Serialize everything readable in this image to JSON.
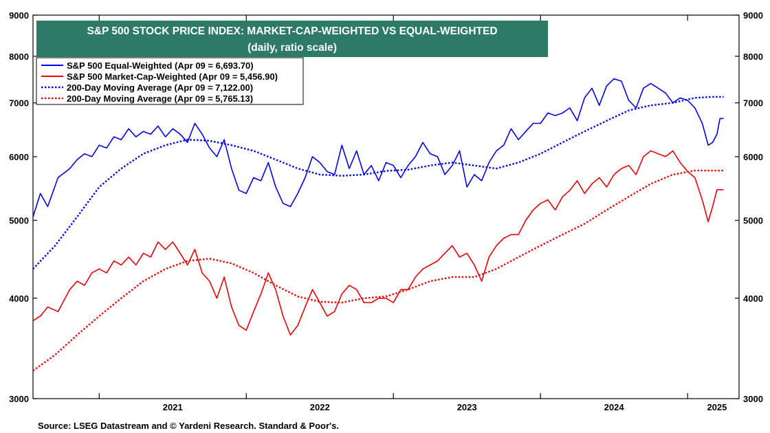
{
  "chart_data": {
    "type": "line",
    "title": "S&P 500 STOCK PRICE INDEX: MARKET-CAP-WEIGHTED VS EQUAL-WEIGHTED",
    "subtitle": "(daily, ratio scale)",
    "source": "Source: LSEG Datastream and © Yardeni Research. Standard & Poor's.",
    "y_scale": "log",
    "ylim": [
      3000,
      9000
    ],
    "yticks": [
      3000,
      4000,
      5000,
      6000,
      7000,
      8000,
      9000
    ],
    "xlim": [
      2020.55,
      2025.35
    ],
    "xticks": [
      2021.5,
      2022.5,
      2023.5,
      2024.5,
      2025.2
    ],
    "xtick_labels": [
      "2021",
      "2022",
      "2023",
      "2024",
      "2025"
    ],
    "year_boundaries": [
      2021,
      2022,
      2023,
      2024,
      2025
    ],
    "grid": false,
    "legend_position": "top-left",
    "colors": {
      "equal": "#0000ee",
      "cap": "#ee0000",
      "title_bg": "#2e7a68"
    },
    "series": [
      {
        "name": "S&P 500 Equal-Weighted (Apr 09 = 6,693.70)",
        "style": "solid",
        "color": "#0000ee",
        "x": [
          2020.55,
          2020.6,
          2020.65,
          2020.72,
          2020.8,
          2020.85,
          2020.9,
          2020.95,
          2021.0,
          2021.05,
          2021.1,
          2021.15,
          2021.2,
          2021.25,
          2021.3,
          2021.35,
          2021.4,
          2021.45,
          2021.5,
          2021.55,
          2021.6,
          2021.65,
          2021.7,
          2021.75,
          2021.8,
          2021.85,
          2021.9,
          2021.95,
          2022.0,
          2022.05,
          2022.1,
          2022.15,
          2022.2,
          2022.25,
          2022.3,
          2022.35,
          2022.4,
          2022.45,
          2022.5,
          2022.55,
          2022.6,
          2022.65,
          2022.7,
          2022.75,
          2022.8,
          2022.85,
          2022.9,
          2022.95,
          2023.0,
          2023.05,
          2023.1,
          2023.15,
          2023.2,
          2023.25,
          2023.3,
          2023.35,
          2023.4,
          2023.45,
          2023.5,
          2023.55,
          2023.6,
          2023.65,
          2023.7,
          2023.75,
          2023.8,
          2023.85,
          2023.9,
          2023.95,
          2024.0,
          2024.05,
          2024.1,
          2024.15,
          2024.2,
          2024.25,
          2024.3,
          2024.35,
          2024.4,
          2024.45,
          2024.5,
          2024.55,
          2024.6,
          2024.65,
          2024.7,
          2024.75,
          2024.8,
          2024.85,
          2024.9,
          2024.95,
          2025.0,
          2025.05,
          2025.1,
          2025.14,
          2025.17,
          2025.2,
          2025.22,
          2025.235,
          2025.245
        ],
        "values": [
          5050,
          5400,
          5200,
          5650,
          5800,
          5950,
          6050,
          6000,
          6200,
          6150,
          6350,
          6300,
          6500,
          6350,
          6450,
          6400,
          6550,
          6350,
          6500,
          6400,
          6250,
          6600,
          6400,
          6150,
          6000,
          6300,
          5800,
          5450,
          5400,
          5650,
          5600,
          5900,
          5500,
          5250,
          5200,
          5400,
          5650,
          6000,
          5900,
          5750,
          5700,
          6200,
          5800,
          6100,
          5700,
          5850,
          5600,
          5900,
          5850,
          5650,
          5850,
          6000,
          6250,
          6050,
          6000,
          5700,
          5850,
          6100,
          5500,
          5700,
          5600,
          5900,
          6100,
          6200,
          6500,
          6300,
          6450,
          6600,
          6600,
          6800,
          6750,
          6800,
          6900,
          6650,
          7100,
          7300,
          6950,
          7350,
          7500,
          7450,
          7050,
          6900,
          7300,
          7400,
          7300,
          7200,
          7000,
          7100,
          7050,
          6900,
          6600,
          6200,
          6250,
          6400,
          6693.7,
          6693.7,
          6693.7
        ]
      },
      {
        "name": "S&P 500 Market-Cap-Weighted (Apr 09 = 5,456.90)",
        "style": "solid",
        "color": "#ee0000",
        "x": [
          2020.55,
          2020.6,
          2020.65,
          2020.72,
          2020.8,
          2020.85,
          2020.9,
          2020.95,
          2021.0,
          2021.05,
          2021.1,
          2021.15,
          2021.2,
          2021.25,
          2021.3,
          2021.35,
          2021.4,
          2021.45,
          2021.5,
          2021.55,
          2021.6,
          2021.65,
          2021.7,
          2021.75,
          2021.8,
          2021.85,
          2021.9,
          2021.95,
          2022.0,
          2022.05,
          2022.1,
          2022.15,
          2022.2,
          2022.25,
          2022.3,
          2022.35,
          2022.4,
          2022.45,
          2022.5,
          2022.55,
          2022.6,
          2022.65,
          2022.7,
          2022.75,
          2022.8,
          2022.85,
          2022.9,
          2022.95,
          2023.0,
          2023.05,
          2023.1,
          2023.15,
          2023.2,
          2023.25,
          2023.3,
          2023.35,
          2023.4,
          2023.45,
          2023.5,
          2023.55,
          2023.6,
          2023.65,
          2023.7,
          2023.75,
          2023.8,
          2023.85,
          2023.9,
          2023.95,
          2024.0,
          2024.05,
          2024.1,
          2024.15,
          2024.2,
          2024.25,
          2024.3,
          2024.35,
          2024.4,
          2024.45,
          2024.5,
          2024.55,
          2024.6,
          2024.65,
          2024.7,
          2024.75,
          2024.8,
          2024.85,
          2024.9,
          2024.95,
          2025.0,
          2025.05,
          2025.1,
          2025.14,
          2025.17,
          2025.2,
          2025.22,
          2025.235,
          2025.245
        ],
        "values": [
          3750,
          3800,
          3900,
          3850,
          4100,
          4200,
          4150,
          4300,
          4350,
          4300,
          4450,
          4400,
          4500,
          4400,
          4550,
          4500,
          4700,
          4600,
          4700,
          4550,
          4400,
          4600,
          4300,
          4200,
          4000,
          4250,
          3900,
          3700,
          3650,
          3850,
          4050,
          4300,
          4100,
          3800,
          3600,
          3700,
          3900,
          4100,
          3950,
          3800,
          3850,
          4050,
          4150,
          4100,
          3950,
          3950,
          4000,
          4000,
          3950,
          4100,
          4100,
          4250,
          4350,
          4400,
          4450,
          4550,
          4650,
          4500,
          4550,
          4400,
          4200,
          4500,
          4650,
          4750,
          4800,
          4800,
          5000,
          5150,
          5250,
          5300,
          5150,
          5350,
          5450,
          5600,
          5400,
          5550,
          5650,
          5500,
          5700,
          5800,
          5850,
          5700,
          6000,
          6100,
          6050,
          6000,
          6100,
          5900,
          5750,
          5650,
          5300,
          4980,
          5200,
          5456.9,
          5456.9,
          5456.9,
          5456.9
        ]
      },
      {
        "name": "200-Day Moving Average (Apr 09 = 7,122.00)",
        "style": "dotted",
        "color": "#0000ee",
        "x": [
          2020.55,
          2020.7,
          2020.85,
          2021.0,
          2021.15,
          2021.3,
          2021.45,
          2021.6,
          2021.75,
          2021.9,
          2022.05,
          2022.2,
          2022.35,
          2022.5,
          2022.65,
          2022.8,
          2022.95,
          2023.1,
          2023.25,
          2023.4,
          2023.55,
          2023.7,
          2023.85,
          2024.0,
          2024.15,
          2024.3,
          2024.45,
          2024.6,
          2024.75,
          2024.9,
          2025.05,
          2025.17,
          2025.245
        ],
        "values": [
          4350,
          4650,
          5050,
          5500,
          5800,
          6050,
          6200,
          6300,
          6280,
          6200,
          6100,
          5950,
          5800,
          5700,
          5680,
          5700,
          5760,
          5780,
          5850,
          5900,
          5850,
          5800,
          5900,
          6050,
          6250,
          6450,
          6650,
          6850,
          6950,
          7000,
          7100,
          7122,
          7122
        ]
      },
      {
        "name": "200-Day Moving Average (Apr 09 = 5,765.13)",
        "style": "dotted",
        "color": "#ee0000",
        "x": [
          2020.55,
          2020.7,
          2020.85,
          2021.0,
          2021.15,
          2021.3,
          2021.45,
          2021.6,
          2021.75,
          2021.9,
          2022.05,
          2022.2,
          2022.35,
          2022.5,
          2022.65,
          2022.8,
          2022.95,
          2023.1,
          2023.25,
          2023.4,
          2023.55,
          2023.7,
          2023.85,
          2024.0,
          2024.15,
          2024.3,
          2024.45,
          2024.6,
          2024.75,
          2024.9,
          2025.05,
          2025.17,
          2025.245
        ],
        "values": [
          3250,
          3400,
          3600,
          3800,
          4000,
          4200,
          4350,
          4450,
          4480,
          4420,
          4300,
          4150,
          4020,
          3960,
          3950,
          4000,
          4020,
          4100,
          4200,
          4250,
          4250,
          4350,
          4500,
          4650,
          4800,
          4950,
          5150,
          5350,
          5550,
          5700,
          5765.13,
          5765.13,
          5765.13
        ]
      }
    ]
  }
}
